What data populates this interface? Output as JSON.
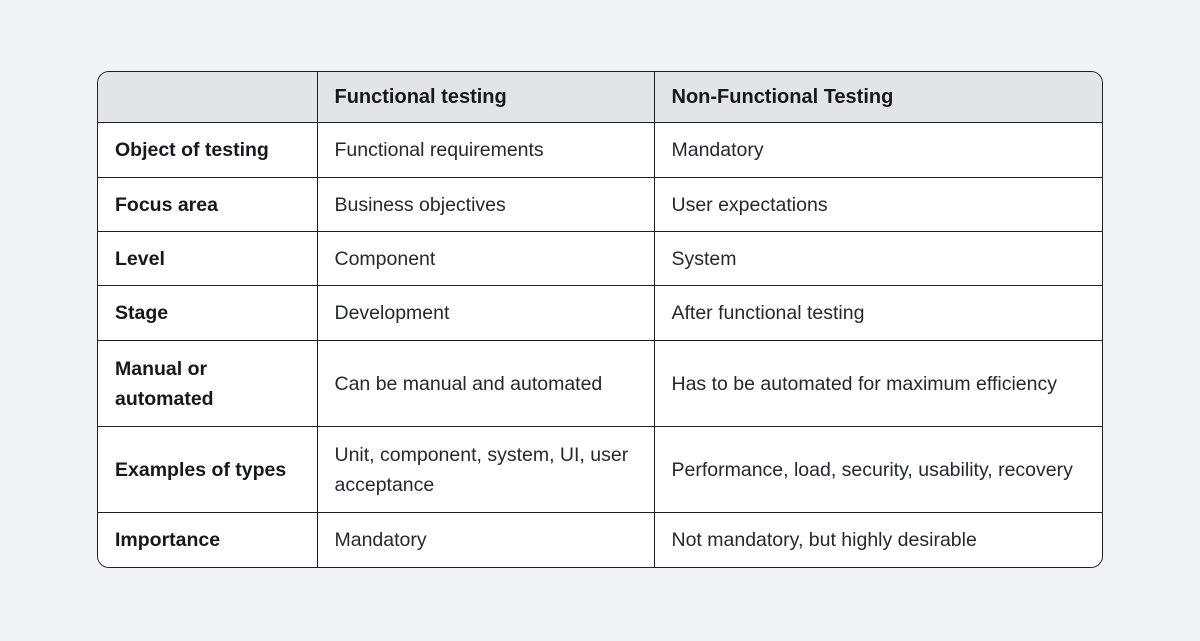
{
  "colors": {
    "page_bg": "#f2f3f6",
    "card_bg": "#ffffff",
    "header_bg": "#e2e4e7",
    "border": "#1d1f23",
    "heading_text": "#17181b",
    "body_text": "#26282b"
  },
  "table": {
    "columns": [
      "",
      "Functional testing",
      "Non-Functional Testing"
    ],
    "rows": [
      {
        "label": "Object of testing",
        "functional": "Functional requirements",
        "non_functional": "Mandatory"
      },
      {
        "label": "Focus area",
        "functional": "Business objectives",
        "non_functional": "User expectations"
      },
      {
        "label": "Level",
        "functional": "Component",
        "non_functional": "System"
      },
      {
        "label": "Stage",
        "functional": "Development",
        "non_functional": "After functional testing"
      },
      {
        "label": "Manual or automated",
        "functional": "Can be manual and automated",
        "non_functional": "Has to be automated for maximum efficiency"
      },
      {
        "label": "Examples of types",
        "functional": "Unit, component, system, UI, user acceptance",
        "non_functional": "Performance, load, security, usability, recovery"
      },
      {
        "label": "Importance",
        "functional": "Mandatory",
        "non_functional": "Not mandatory, but highly desirable"
      }
    ]
  }
}
